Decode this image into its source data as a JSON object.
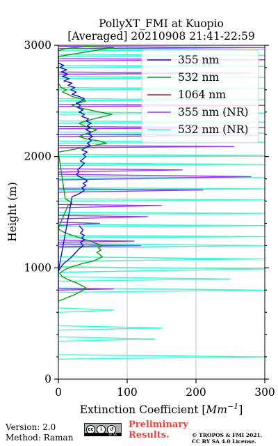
{
  "chart_data": {
    "type": "line",
    "title": "PollyXT_FMI at Kuopio",
    "subtitle": "[Averaged] 20210908 21:41-22:59",
    "xlabel": "Extinction Coefficient [",
    "xlabel_unit": "Mm",
    "xlabel_exp": "−1",
    "xlabel_end": "]",
    "ylabel": "Height (m)",
    "xlim": [
      0,
      300
    ],
    "ylim": [
      0,
      3000
    ],
    "xticks": [
      0,
      100,
      200,
      300
    ],
    "yticks": [
      0,
      1000,
      2000,
      3000
    ],
    "grid": true,
    "legend_position": "top-right",
    "series": [
      {
        "name": "355 nm",
        "color": "#1111cc",
        "points": [
          [
            30,
            1380
          ],
          [
            36,
            1340
          ],
          [
            32,
            1310
          ],
          [
            38,
            1290
          ],
          [
            34,
            1270
          ],
          [
            38,
            1250
          ],
          [
            32,
            1230
          ],
          [
            36,
            1200
          ],
          [
            30,
            1170
          ],
          [
            24,
            1130
          ],
          [
            18,
            1090
          ],
          [
            12,
            1060
          ],
          [
            8,
            1040
          ],
          [
            4,
            1010
          ],
          [
            0,
            970
          ],
          [
            20,
            1640
          ],
          [
            28,
            1660
          ],
          [
            34,
            1680
          ],
          [
            38,
            1700
          ],
          [
            34,
            1720
          ],
          [
            40,
            1740
          ],
          [
            36,
            1760
          ],
          [
            42,
            1780
          ],
          [
            38,
            1800
          ],
          [
            30,
            1820
          ],
          [
            26,
            1840
          ],
          [
            30,
            1860
          ],
          [
            28,
            1880
          ],
          [
            38,
            1940
          ],
          [
            32,
            1960
          ],
          [
            36,
            1980
          ],
          [
            40,
            2000
          ],
          [
            36,
            2020
          ],
          [
            42,
            2040
          ],
          [
            34,
            2060
          ],
          [
            40,
            2080
          ],
          [
            46,
            2100
          ],
          [
            42,
            2120
          ],
          [
            48,
            2140
          ],
          [
            44,
            2160
          ],
          [
            50,
            2180
          ],
          [
            44,
            2200
          ],
          [
            48,
            2220
          ],
          [
            40,
            2240
          ],
          [
            46,
            2260
          ],
          [
            42,
            2280
          ],
          [
            48,
            2300
          ],
          [
            40,
            2320
          ],
          [
            44,
            2340
          ],
          [
            34,
            2360
          ],
          [
            38,
            2380
          ],
          [
            30,
            2400
          ],
          [
            36,
            2420
          ],
          [
            28,
            2440
          ],
          [
            32,
            2460
          ],
          [
            26,
            2480
          ],
          [
            34,
            2500
          ],
          [
            38,
            2520
          ],
          [
            30,
            2540
          ],
          [
            20,
            2560
          ],
          [
            26,
            2580
          ],
          [
            18,
            2600
          ],
          [
            24,
            2620
          ],
          [
            14,
            2640
          ],
          [
            20,
            2660
          ],
          [
            8,
            2680
          ],
          [
            16,
            2700
          ],
          [
            6,
            2720
          ],
          [
            14,
            2740
          ],
          [
            4,
            2760
          ],
          [
            12,
            2780
          ],
          [
            2,
            2800
          ],
          [
            8,
            2820
          ],
          [
            0,
            2840
          ]
        ]
      },
      {
        "name": "532 nm",
        "color": "#119911",
        "points": [
          [
            0,
            700
          ],
          [
            8,
            720
          ],
          [
            16,
            740
          ],
          [
            24,
            760
          ],
          [
            30,
            780
          ],
          [
            36,
            800
          ],
          [
            40,
            820
          ],
          [
            34,
            840
          ],
          [
            28,
            860
          ],
          [
            20,
            880
          ],
          [
            12,
            900
          ],
          [
            6,
            920
          ],
          [
            2,
            950
          ],
          [
            8,
            980
          ],
          [
            20,
            1010
          ],
          [
            36,
            1040
          ],
          [
            50,
            1060
          ],
          [
            58,
            1080
          ],
          [
            64,
            1100
          ],
          [
            60,
            1120
          ],
          [
            56,
            1140
          ],
          [
            62,
            1160
          ],
          [
            58,
            1180
          ],
          [
            64,
            1200
          ],
          [
            54,
            1220
          ],
          [
            46,
            1240
          ],
          [
            36,
            1260
          ],
          [
            26,
            1280
          ],
          [
            16,
            1300
          ],
          [
            8,
            1320
          ],
          [
            2,
            1340
          ],
          [
            0,
            1360
          ],
          [
            14,
            1560
          ],
          [
            20,
            1580
          ],
          [
            16,
            1600
          ],
          [
            10,
            1620
          ],
          [
            0,
            2040
          ],
          [
            18,
            2060
          ],
          [
            36,
            2080
          ],
          [
            52,
            2100
          ],
          [
            70,
            2120
          ],
          [
            60,
            2140
          ],
          [
            40,
            2160
          ],
          [
            30,
            2180
          ],
          [
            38,
            2200
          ],
          [
            48,
            2220
          ],
          [
            56,
            2240
          ],
          [
            44,
            2260
          ],
          [
            36,
            2280
          ],
          [
            30,
            2300
          ],
          [
            40,
            2320
          ],
          [
            52,
            2340
          ],
          [
            66,
            2360
          ],
          [
            78,
            2380
          ],
          [
            60,
            2400
          ],
          [
            44,
            2420
          ],
          [
            30,
            2440
          ],
          [
            20,
            2460
          ],
          [
            30,
            2480
          ],
          [
            40,
            2500
          ],
          [
            32,
            2520
          ],
          [
            20,
            2540
          ],
          [
            14,
            2560
          ],
          [
            6,
            2580
          ],
          [
            12,
            2600
          ],
          [
            4,
            2620
          ],
          [
            0,
            2660
          ],
          [
            0,
            2900
          ],
          [
            30,
            2930
          ],
          [
            60,
            2960
          ],
          [
            80,
            2980
          ],
          [
            40,
            2990
          ],
          [
            10,
            2970
          ],
          [
            0,
            2950
          ]
        ]
      },
      {
        "name": "1064 nm",
        "color": "#cc1111",
        "points": []
      },
      {
        "name": "355 nm (NR)",
        "color": "#9933ff",
        "points": [
          [
            0,
            800
          ],
          [
            80,
            810
          ],
          [
            0,
            815
          ],
          [
            0,
            1190
          ],
          [
            120,
            1200
          ],
          [
            0,
            1210
          ],
          [
            0,
            1230
          ],
          [
            110,
            1240
          ],
          [
            0,
            1250
          ],
          [
            0,
            1380
          ],
          [
            60,
            1400
          ],
          [
            0,
            1410
          ],
          [
            0,
            1440
          ],
          [
            130,
            1460
          ],
          [
            0,
            1470
          ],
          [
            0,
            1540
          ],
          [
            150,
            1560
          ],
          [
            0,
            1570
          ],
          [
            0,
            1680
          ],
          [
            210,
            1700
          ],
          [
            0,
            1710
          ],
          [
            0,
            1790
          ],
          [
            280,
            1820
          ],
          [
            0,
            1840
          ],
          [
            0,
            1860
          ],
          [
            180,
            1880
          ],
          [
            0,
            1890
          ],
          [
            0,
            2080
          ],
          [
            255,
            2090
          ],
          [
            0,
            2100
          ],
          [
            0,
            2180
          ],
          [
            290,
            2190
          ],
          [
            0,
            2200
          ],
          [
            0,
            2250
          ],
          [
            300,
            2260
          ],
          [
            0,
            2270
          ],
          [
            0,
            2450
          ],
          [
            300,
            2460
          ],
          [
            0,
            2470
          ],
          [
            0,
            2740
          ],
          [
            280,
            2750
          ],
          [
            0,
            2760
          ],
          [
            0,
            2860
          ],
          [
            300,
            2870
          ],
          [
            0,
            2880
          ],
          [
            0,
            2970
          ],
          [
            300,
            2980
          ],
          [
            0,
            2990
          ]
        ]
      },
      {
        "name": "532 nm (NR)",
        "color": "#33ffcc",
        "points": [
          [
            0,
            180
          ],
          [
            300,
            200
          ],
          [
            0,
            220
          ],
          [
            0,
            340
          ],
          [
            140,
            360
          ],
          [
            0,
            380
          ],
          [
            0,
            440
          ],
          [
            150,
            460
          ],
          [
            0,
            480
          ],
          [
            0,
            600
          ],
          [
            80,
            620
          ],
          [
            0,
            640
          ],
          [
            0,
            780
          ],
          [
            300,
            800
          ],
          [
            0,
            820
          ],
          [
            0,
            880
          ],
          [
            250,
            900
          ],
          [
            0,
            920
          ],
          [
            0,
            960
          ],
          [
            300,
            990
          ],
          [
            0,
            1010
          ],
          [
            0,
            1060
          ],
          [
            300,
            1080
          ],
          [
            0,
            1100
          ],
          [
            0,
            1180
          ],
          [
            300,
            1200
          ],
          [
            0,
            1220
          ],
          [
            0,
            1270
          ],
          [
            300,
            1280
          ],
          [
            0,
            1290
          ],
          [
            0,
            1370
          ],
          [
            300,
            1380
          ],
          [
            0,
            1390
          ],
          [
            0,
            1480
          ],
          [
            300,
            1490
          ],
          [
            0,
            1500
          ],
          [
            0,
            1600
          ],
          [
            300,
            1610
          ],
          [
            0,
            1620
          ],
          [
            0,
            1700
          ],
          [
            300,
            1710
          ],
          [
            0,
            1720
          ],
          [
            0,
            1800
          ],
          [
            300,
            1810
          ],
          [
            0,
            1820
          ],
          [
            0,
            1920
          ],
          [
            300,
            1930
          ],
          [
            0,
            1940
          ],
          [
            0,
            2000
          ],
          [
            300,
            2010
          ],
          [
            0,
            2020
          ],
          [
            0,
            2120
          ],
          [
            300,
            2130
          ],
          [
            0,
            2140
          ],
          [
            0,
            2200
          ],
          [
            300,
            2210
          ],
          [
            0,
            2220
          ],
          [
            0,
            2300
          ],
          [
            300,
            2310
          ],
          [
            0,
            2320
          ],
          [
            0,
            2380
          ],
          [
            300,
            2390
          ],
          [
            0,
            2400
          ],
          [
            0,
            2500
          ],
          [
            300,
            2510
          ],
          [
            0,
            2520
          ],
          [
            0,
            2600
          ],
          [
            300,
            2610
          ],
          [
            0,
            2620
          ],
          [
            0,
            2700
          ],
          [
            300,
            2710
          ],
          [
            0,
            2720
          ],
          [
            0,
            2800
          ],
          [
            300,
            2810
          ],
          [
            0,
            2820
          ],
          [
            0,
            2900
          ],
          [
            300,
            2910
          ],
          [
            0,
            2920
          ],
          [
            0,
            2950
          ],
          [
            300,
            2960
          ],
          [
            0,
            2970
          ]
        ]
      }
    ]
  },
  "footer": {
    "version": "Version: 2.0",
    "method": "Method: Raman",
    "preliminary_line1": "Preliminary",
    "preliminary_line2": "Results.",
    "copyright_line1": "© TROPOS & FMI 2021.",
    "copyright_line2": "CC BY SA 4.0 License.",
    "cc_label": "BY SA"
  }
}
